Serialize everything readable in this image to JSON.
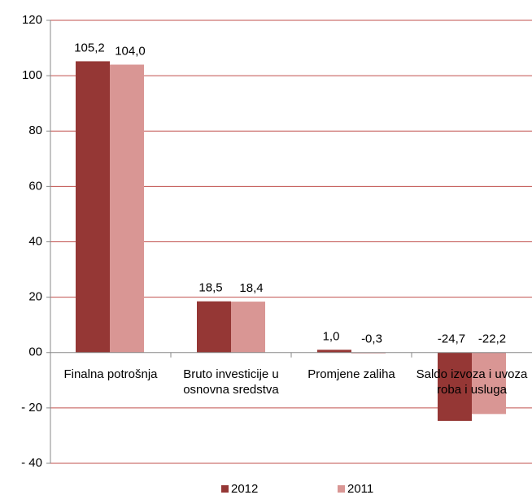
{
  "chart_data": {
    "type": "bar",
    "categories": [
      "Finalna potrošnja",
      "Bruto investicije u osnovna sredstva",
      "Promjene zaliha",
      "Saldo izvoza i uvoza roba i usluga"
    ],
    "series": [
      {
        "name": "2012",
        "color": "#953735",
        "values": [
          105.2,
          18.5,
          1.0,
          -24.7
        ],
        "value_labels": [
          "105,2",
          "18,5",
          "1,0",
          "-24,7"
        ]
      },
      {
        "name": "2011",
        "color": "#d99694",
        "values": [
          104.0,
          18.4,
          -0.3,
          -22.2
        ],
        "value_labels": [
          "104,0",
          "18,4",
          "-0,3",
          "-22,2"
        ]
      }
    ],
    "ylim": [
      -40,
      120
    ],
    "yticks": [
      {
        "value": -40,
        "label": "- 40"
      },
      {
        "value": -20,
        "label": "- 20"
      },
      {
        "value": 0,
        "label": "00"
      },
      20,
      40,
      60,
      80,
      100,
      120
    ],
    "grid": true,
    "grid_color": "#c0504d",
    "legend": "bottom"
  }
}
